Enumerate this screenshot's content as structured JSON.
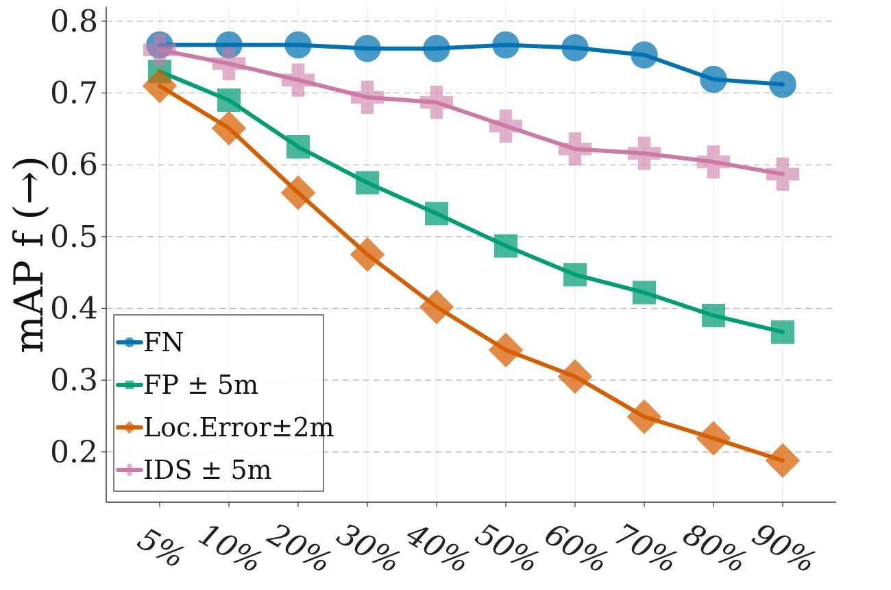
{
  "chart_data": {
    "type": "line",
    "title": "",
    "xlabel": "",
    "ylabel": "mAP f (→)",
    "categories": [
      "5%",
      "10%",
      "20%",
      "30%",
      "40%",
      "50%",
      "60%",
      "70%",
      "80%",
      "90%"
    ],
    "ylim": [
      0.13,
      0.82
    ],
    "yticks": [
      0.2,
      0.3,
      0.4,
      0.5,
      0.6,
      0.7,
      0.8
    ],
    "ytick_labels": [
      "0.2",
      "0.3",
      "0.4",
      "0.5",
      "0.6",
      "0.7",
      "0.8"
    ],
    "grid": true,
    "legend_position": "lower-left",
    "series": [
      {
        "name": "FN",
        "marker": "circle",
        "color": "#0072B2",
        "values": [
          0.767,
          0.767,
          0.767,
          0.762,
          0.762,
          0.767,
          0.763,
          0.753,
          0.719,
          0.712
        ]
      },
      {
        "name": "FP ± 5m",
        "marker": "square",
        "color": "#009E73",
        "values": [
          0.73,
          0.69,
          0.625,
          0.575,
          0.532,
          0.487,
          0.447,
          0.422,
          0.39,
          0.367
        ]
      },
      {
        "name": "Loc.Error±2m",
        "marker": "diamond",
        "color": "#D55E00",
        "values": [
          0.71,
          0.651,
          0.561,
          0.475,
          0.402,
          0.342,
          0.305,
          0.249,
          0.219,
          0.188
        ]
      },
      {
        "name": "IDS ± 5m",
        "marker": "plus",
        "color": "#CC79A7",
        "values": [
          0.76,
          0.741,
          0.718,
          0.694,
          0.687,
          0.654,
          0.622,
          0.616,
          0.604,
          0.587
        ]
      }
    ]
  }
}
